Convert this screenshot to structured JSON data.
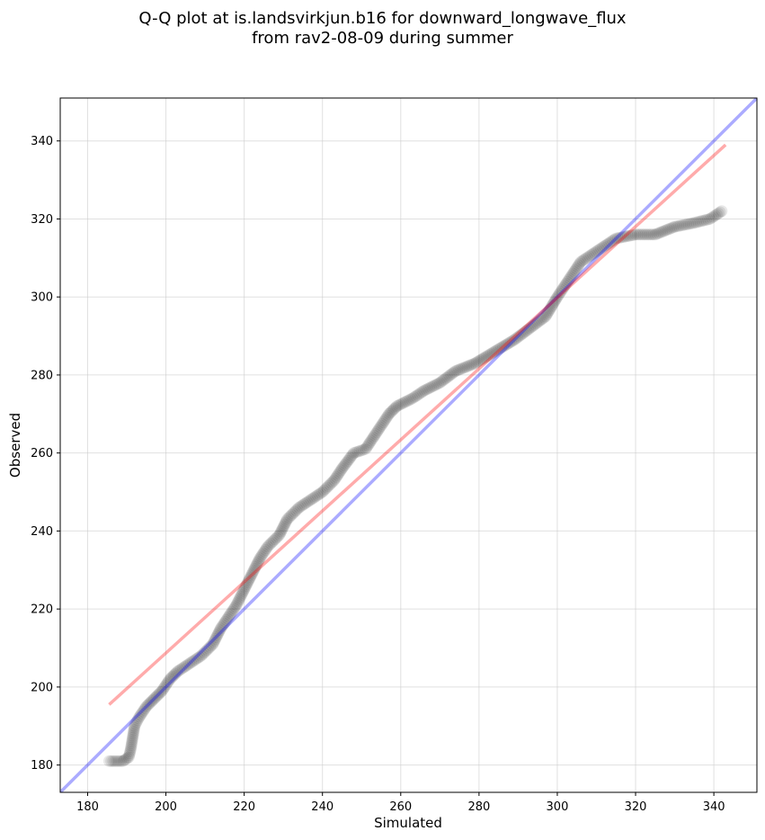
{
  "title": "Q-Q plot at is.landsvirkjun.b16 for downward_longwave_flux",
  "subtitle": "from rav2-08-09 during summer",
  "chart_data": {
    "type": "scatter",
    "title": "Q-Q plot at is.landsvirkjun.b16 for downward_longwave_flux",
    "subtitle": "from rav2-08-09 during summer",
    "xlabel": "Simulated",
    "ylabel": "Observed",
    "xlim": [
      173,
      351
    ],
    "ylim": [
      173,
      351
    ],
    "xticks": [
      180,
      200,
      220,
      240,
      260,
      280,
      300,
      320,
      340
    ],
    "yticks": [
      180,
      200,
      220,
      240,
      260,
      280,
      300,
      320,
      340
    ],
    "grid": true,
    "colors": {
      "points": "#000000",
      "identity_line": "#0000ff",
      "fit_line": "#ff0000"
    },
    "quantile_curve": [
      [
        185.5,
        181
      ],
      [
        189,
        181
      ],
      [
        190.5,
        182
      ],
      [
        191,
        184
      ],
      [
        191.5,
        187
      ],
      [
        192,
        190
      ],
      [
        193,
        192
      ],
      [
        195,
        195
      ],
      [
        197,
        197
      ],
      [
        199,
        199
      ],
      [
        201,
        202
      ],
      [
        203,
        204
      ],
      [
        206,
        206
      ],
      [
        209,
        208
      ],
      [
        212,
        211
      ],
      [
        214,
        215
      ],
      [
        216,
        218
      ],
      [
        218,
        221
      ],
      [
        220,
        225
      ],
      [
        222,
        229
      ],
      [
        224,
        233
      ],
      [
        226,
        236
      ],
      [
        229,
        239
      ],
      [
        231,
        243
      ],
      [
        234,
        246
      ],
      [
        237,
        248
      ],
      [
        240,
        250
      ],
      [
        243,
        253
      ],
      [
        245,
        256
      ],
      [
        248,
        260
      ],
      [
        251,
        261
      ],
      [
        253,
        264
      ],
      [
        255,
        267
      ],
      [
        257,
        270
      ],
      [
        259,
        272
      ],
      [
        263,
        274
      ],
      [
        266,
        276
      ],
      [
        270,
        278
      ],
      [
        274,
        281
      ],
      [
        279,
        283
      ],
      [
        284,
        286
      ],
      [
        289,
        289
      ],
      [
        293,
        292
      ],
      [
        297,
        295
      ],
      [
        300,
        300
      ],
      [
        302,
        303
      ],
      [
        304,
        306
      ],
      [
        306,
        309
      ],
      [
        309,
        311
      ],
      [
        312,
        313
      ],
      [
        315,
        315
      ],
      [
        320,
        316
      ],
      [
        325,
        316
      ],
      [
        330,
        318
      ],
      [
        335,
        319
      ],
      [
        339,
        320
      ],
      [
        342,
        322
      ]
    ],
    "identity_line": {
      "x": [
        173,
        351
      ],
      "y": [
        173,
        351
      ]
    },
    "fit_line": {
      "x": [
        185.5,
        343
      ],
      "y": [
        195.5,
        339
      ]
    }
  }
}
